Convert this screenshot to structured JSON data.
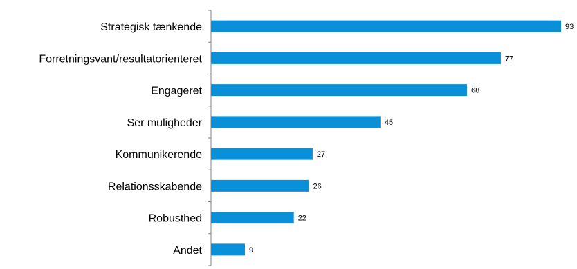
{
  "chart_data": {
    "type": "bar",
    "orientation": "horizontal",
    "categories": [
      "Strategisk tænkende",
      "Forretningsvant/resultatorienteret",
      "Engageret",
      "Ser muligheder",
      "Kommunikerende",
      "Relationsskabende",
      "Robusthed",
      "Andet"
    ],
    "values": [
      93,
      77,
      68,
      45,
      27,
      26,
      22,
      9
    ],
    "title": "",
    "xlabel": "",
    "ylabel": "",
    "xlim": [
      0,
      93
    ],
    "grid": false,
    "legend": "none",
    "bar_color": "#0a8fd9",
    "axis_color": "#808080"
  }
}
